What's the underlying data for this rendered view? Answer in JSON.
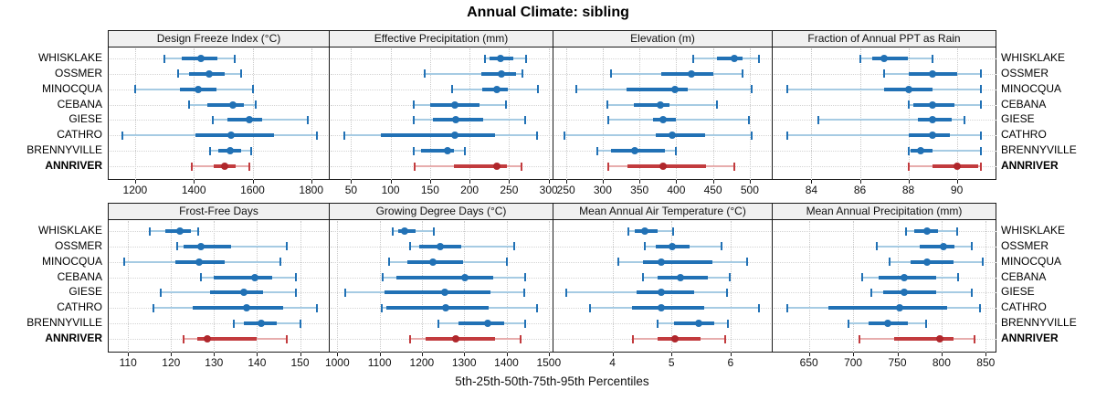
{
  "title": "Annual Climate: sibling",
  "footer": "5th-25th-50th-75th-95th Percentiles",
  "percentile_labels": [
    "5th",
    "25th",
    "50th",
    "75th",
    "95th"
  ],
  "sites": [
    "WHISKLAKE",
    "OSSMER",
    "MINOCQUA",
    "CEBANA",
    "GIESE",
    "CATHRO",
    "BRENNYVILLE",
    "ANNRIVER"
  ],
  "highlight_site": "ANNRIVER",
  "colors": {
    "series": "#2171b5",
    "series_light": "#a6cbe3",
    "series_dot": "#2171b5",
    "highlight": "#c23b3e",
    "highlight_light": "#e7adad",
    "highlight_dot": "#b0272c",
    "grid": "#cbcbcb",
    "strip_bg": "#f0f0f0",
    "border": "#1a1a1a"
  },
  "chart_data": [
    {
      "type": "dotplot-interval",
      "title": "Design Freeze Index (°C)",
      "xlim": [
        1110,
        1860
      ],
      "ticks": [
        1200,
        1400,
        1600,
        1800
      ],
      "percentiles": [
        5,
        25,
        50,
        75,
        95
      ],
      "values": [
        [
          1300,
          1360,
          1425,
          1480,
          1540
        ],
        [
          1346,
          1384,
          1452,
          1505,
          1560
        ],
        [
          1200,
          1353,
          1415,
          1477,
          1600
        ],
        [
          1384,
          1446,
          1532,
          1570,
          1610
        ],
        [
          1466,
          1513,
          1590,
          1632,
          1787
        ],
        [
          1157,
          1405,
          1528,
          1673,
          1818
        ],
        [
          1454,
          1482,
          1524,
          1560,
          1596
        ],
        [
          1392,
          1467,
          1505,
          1544,
          1589
        ]
      ]
    },
    {
      "type": "dotplot-interval",
      "title": "Effective Precipitation (mm)",
      "xlim": [
        23,
        305
      ],
      "ticks": [
        50,
        100,
        150,
        200,
        250,
        300
      ],
      "percentiles": [
        5,
        25,
        50,
        75,
        95
      ],
      "values": [
        [
          219,
          225,
          239,
          255,
          272
        ],
        [
          143,
          215,
          240,
          259,
          267
        ],
        [
          178,
          216,
          235,
          248,
          286
        ],
        [
          129,
          150,
          181,
          213,
          246
        ],
        [
          129,
          153,
          183,
          217,
          270
        ],
        [
          41,
          88,
          181,
          232,
          285
        ],
        [
          129,
          138,
          172,
          180,
          194
        ],
        [
          131,
          180,
          234,
          247,
          266
        ]
      ]
    },
    {
      "type": "dotplot-interval",
      "title": "Elevation (m)",
      "xlim": [
        233,
        530
      ],
      "ticks": [
        250,
        300,
        350,
        400,
        450,
        500
      ],
      "percentiles": [
        5,
        25,
        50,
        75,
        95
      ],
      "values": [
        [
          423,
          455,
          479,
          490,
          512
        ],
        [
          311,
          379,
          420,
          451,
          490
        ],
        [
          264,
          332,
          398,
          416,
          502
        ],
        [
          306,
          342,
          378,
          391,
          455
        ],
        [
          308,
          369,
          382,
          400,
          499
        ],
        [
          248,
          372,
          395,
          439,
          502
        ],
        [
          292,
          311,
          343,
          385,
          399
        ],
        [
          307,
          334,
          382,
          441,
          479
        ]
      ]
    },
    {
      "type": "dotplot-interval",
      "title": "Fraction of Annual PPT as Rain",
      "xlim": [
        82.4,
        91.6
      ],
      "ticks": [
        84,
        86,
        88,
        90
      ],
      "percentiles": [
        5,
        25,
        50,
        75,
        95
      ],
      "values": [
        [
          86,
          86.5,
          87,
          88,
          89
        ],
        [
          87,
          88,
          89,
          90,
          91
        ],
        [
          83,
          87,
          88,
          89,
          91
        ],
        [
          88,
          88.2,
          89,
          89.9,
          91
        ],
        [
          84.3,
          88.4,
          89,
          89.8,
          90.3
        ],
        [
          83,
          88,
          89,
          89.7,
          91
        ],
        [
          88,
          88.1,
          88.5,
          89,
          91
        ],
        [
          88,
          89,
          90,
          90.9,
          91
        ]
      ]
    },
    {
      "type": "dotplot-interval",
      "title": "Frost-Free Days",
      "xlim": [
        105.5,
        156.7
      ],
      "ticks": [
        110,
        120,
        130,
        140,
        150
      ],
      "percentiles": [
        5,
        25,
        50,
        75,
        95
      ],
      "values": [
        [
          115,
          118.6,
          122,
          124.6,
          126.4
        ],
        [
          121.5,
          123,
          127,
          134,
          147
        ],
        [
          109,
          121,
          126.5,
          132.5,
          145.5
        ],
        [
          127,
          130,
          139.5,
          143.5,
          149
        ],
        [
          117.5,
          129,
          137,
          141.5,
          149
        ],
        [
          116,
          125,
          137.5,
          146,
          154
        ],
        [
          134.5,
          137,
          141,
          144.5,
          150
        ],
        [
          123,
          126,
          128.5,
          140,
          147
        ]
      ]
    },
    {
      "type": "dotplot-interval",
      "title": "Growing Degree Days (°C)",
      "xlim": [
        982,
        1509
      ],
      "ticks": [
        1000,
        1100,
        1200,
        1300,
        1400,
        1500
      ],
      "percentiles": [
        5,
        25,
        50,
        75,
        95
      ],
      "values": [
        [
          1130,
          1143,
          1159,
          1186,
          1228
        ],
        [
          1171,
          1194,
          1244,
          1294,
          1419
        ],
        [
          1123,
          1165,
          1226,
          1298,
          1401
        ],
        [
          1108,
          1140,
          1301,
          1369,
          1444
        ],
        [
          1018,
          1111,
          1255,
          1362,
          1441
        ],
        [
          1106,
          1115,
          1257,
          1358,
          1473
        ],
        [
          1238,
          1287,
          1355,
          1394,
          1444
        ],
        [
          1171,
          1208,
          1281,
          1373,
          1434
        ]
      ]
    },
    {
      "type": "dotplot-interval",
      "title": "Mean Annual Air Temperature (°C)",
      "xlim": [
        3.0,
        6.7
      ],
      "ticks": [
        4,
        5,
        6
      ],
      "percentiles": [
        5,
        25,
        50,
        75,
        95
      ],
      "values": [
        [
          4.27,
          4.38,
          4.54,
          4.77,
          5.03
        ],
        [
          4.55,
          4.74,
          5.01,
          5.31,
          5.85
        ],
        [
          4.1,
          4.51,
          4.83,
          5.69,
          6.28
        ],
        [
          4.51,
          4.77,
          5.15,
          5.62,
          5.99
        ],
        [
          3.22,
          4.41,
          4.83,
          5.38,
          5.94
        ],
        [
          3.62,
          4.33,
          4.82,
          5.56,
          6.49
        ],
        [
          4.76,
          5.05,
          5.46,
          5.72,
          5.95
        ],
        [
          4.35,
          4.76,
          5.06,
          5.49,
          5.91
        ]
      ]
    },
    {
      "type": "dotplot-interval",
      "title": "Mean Annual Precipitation (mm)",
      "xlim": [
        609,
        861
      ],
      "ticks": [
        650,
        700,
        750,
        800,
        850
      ],
      "percentiles": [
        5,
        25,
        50,
        75,
        95
      ],
      "values": [
        [
          760,
          769,
          783,
          796,
          818
        ],
        [
          727,
          775,
          802,
          815,
          834
        ],
        [
          741,
          765,
          784,
          814,
          846
        ],
        [
          710,
          729,
          758,
          794,
          819
        ],
        [
          720,
          734,
          758,
          794,
          834
        ],
        [
          625,
          672,
          753,
          806,
          843
        ],
        [
          695,
          717,
          739,
          762,
          782
        ],
        [
          707,
          746,
          798,
          813,
          837
        ]
      ]
    }
  ]
}
